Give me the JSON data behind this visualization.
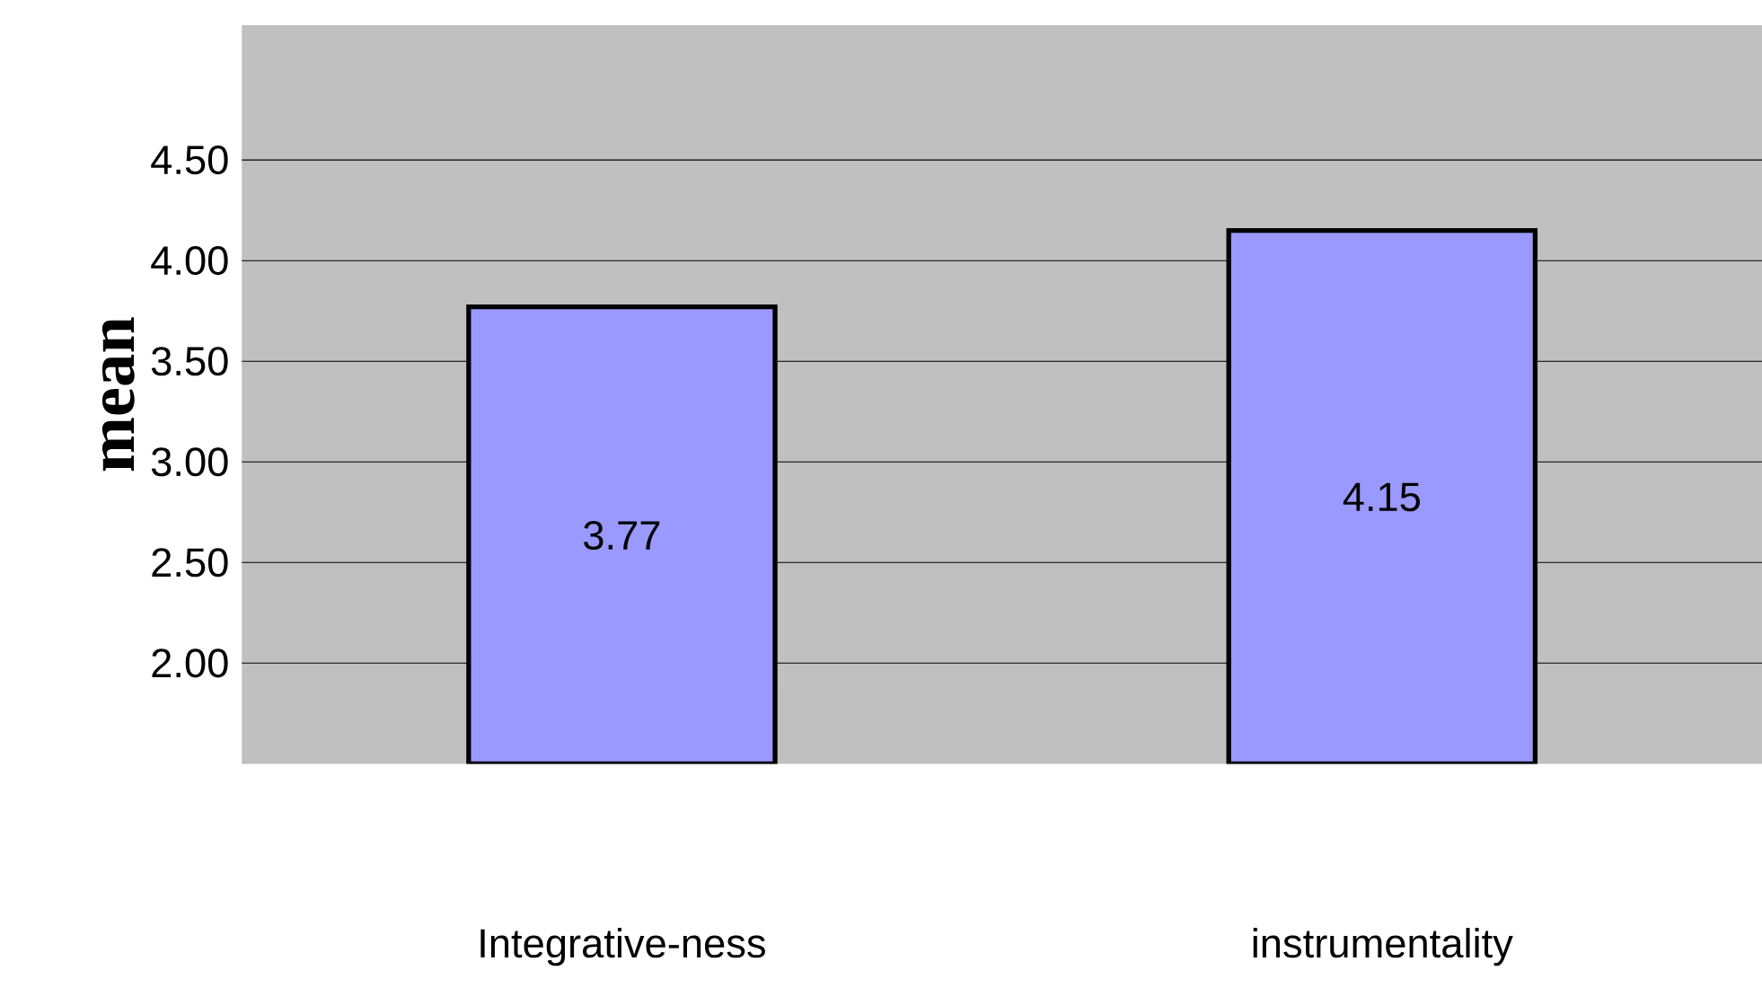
{
  "chart_data": {
    "type": "bar",
    "ylabel": "mean",
    "categories": [
      "Integrative-ness",
      "instrumentality"
    ],
    "values": [
      3.77,
      4.15
    ],
    "color": "#9999ff",
    "ylim": [
      1.5,
      5.17
    ],
    "yticks": [
      "2.00",
      "2.50",
      "3.00",
      "3.50",
      "4.00",
      "4.50"
    ],
    "grid": "y",
    "data_labels": true
  }
}
